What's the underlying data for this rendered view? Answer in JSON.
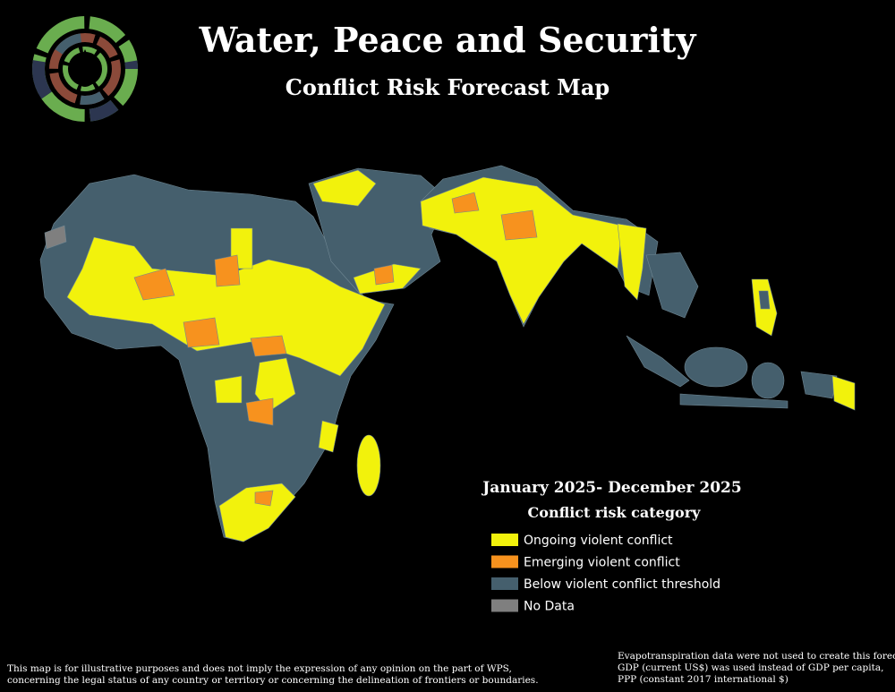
{
  "header": {
    "title": "Water, Peace and Security",
    "subtitle": "Conflict Risk Forecast Map"
  },
  "legend": {
    "period": "January 2025- December 2025",
    "title": "Conflict risk category",
    "items": [
      {
        "label": "Ongoing violent conflict",
        "color": "#f2f20c"
      },
      {
        "label": "Emerging violent conflict",
        "color": "#f7921e"
      },
      {
        "label": "Below violent conflict threshold",
        "color": "#455f6d"
      },
      {
        "label": "No Data",
        "color": "#7f7f7f"
      }
    ]
  },
  "disclaimer": [
    "This map is for illustrative purposes and does not imply the expression of any opinion on the part of WPS,",
    "concerning the legal status of any country or territory or concerning the delineation of frontiers or boundaries."
  ],
  "note": [
    "Evapotranspiration data were not used to create this forecast",
    "GDP (current US$) was used instead of GDP per capita,",
    "PPP (constant 2017 international $)"
  ]
}
